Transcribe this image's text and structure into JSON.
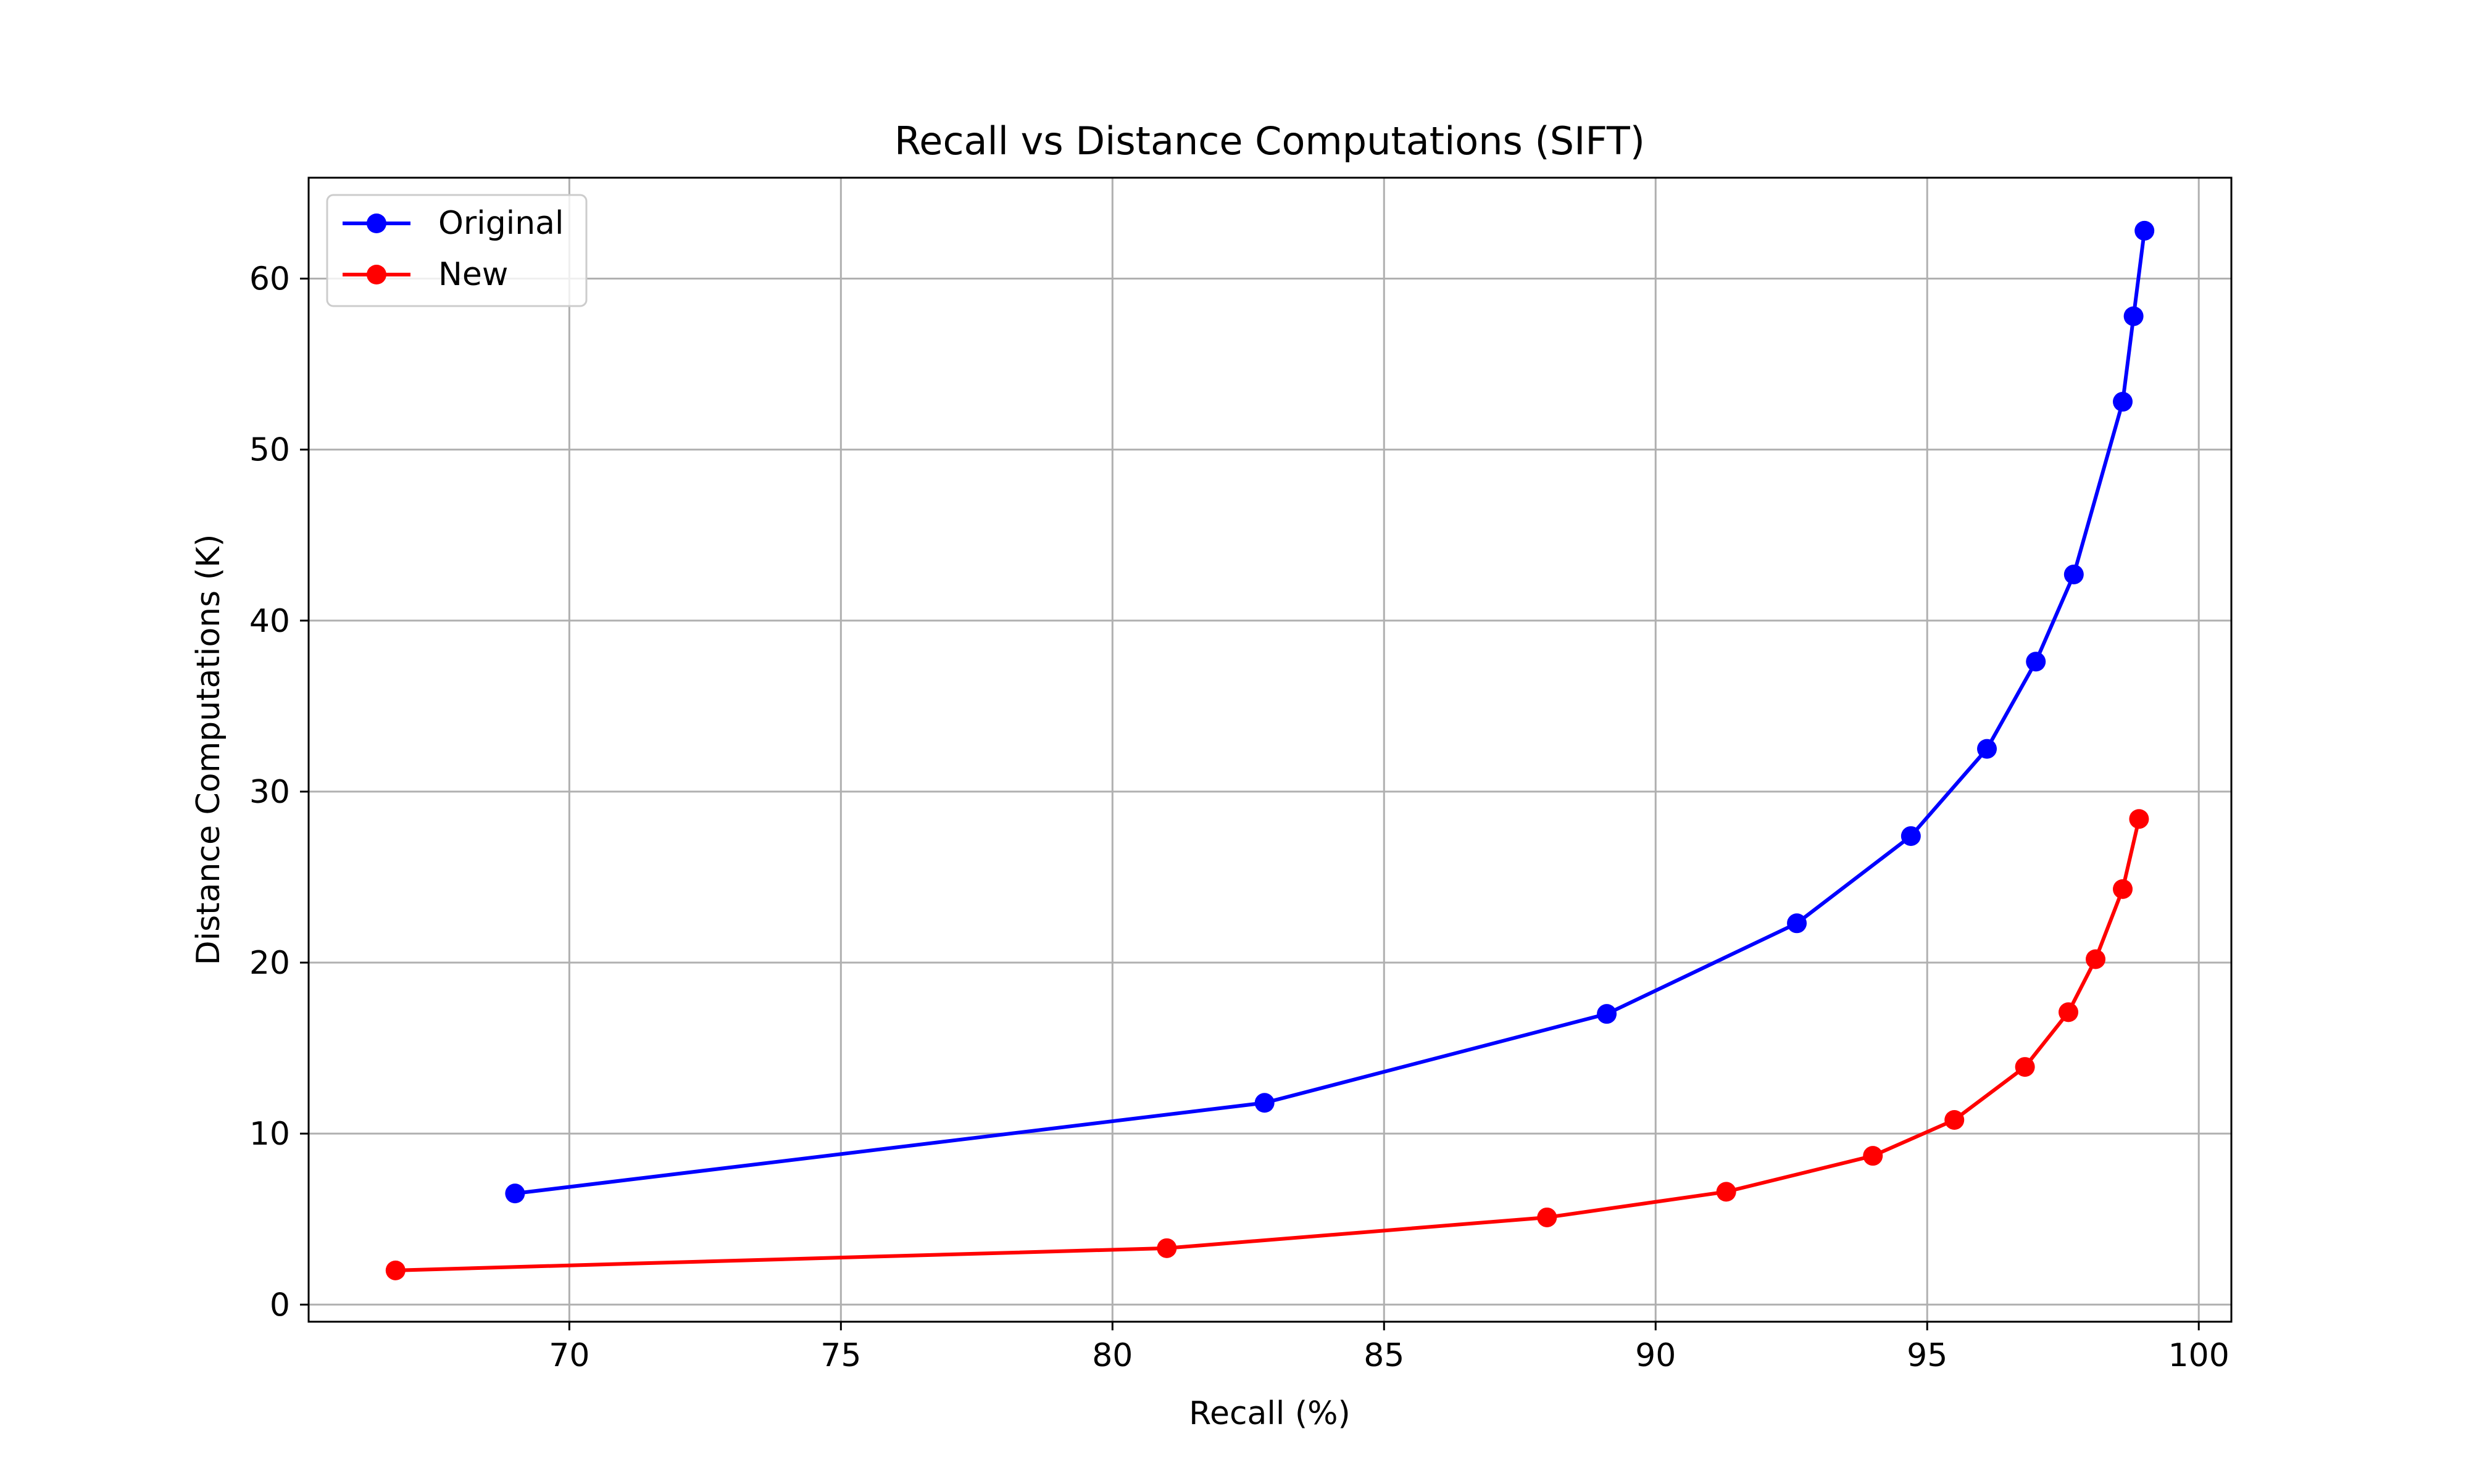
{
  "chart_data": {
    "type": "line",
    "title": "Recall vs Distance Computations (SIFT)",
    "xlabel": "Recall (%)",
    "ylabel": "Distance Computations (K)",
    "xlim": [
      65.2,
      100.6
    ],
    "ylim": [
      -1.0,
      65.9
    ],
    "xticks": [
      70,
      75,
      80,
      85,
      90,
      95,
      100
    ],
    "yticks": [
      0,
      10,
      20,
      30,
      40,
      50,
      60
    ],
    "grid": true,
    "legend_position": "top-left",
    "series": [
      {
        "name": "Original",
        "color": "#0000ff",
        "marker": "circle",
        "points": [
          [
            69.0,
            6.5
          ],
          [
            82.8,
            11.8
          ],
          [
            89.1,
            17.0
          ],
          [
            92.6,
            22.3
          ],
          [
            94.7,
            27.4
          ],
          [
            96.1,
            32.5
          ],
          [
            97.0,
            37.6
          ],
          [
            97.7,
            42.7
          ],
          [
            98.6,
            52.8
          ],
          [
            98.8,
            57.8
          ],
          [
            99.0,
            62.8
          ]
        ]
      },
      {
        "name": "New",
        "color": "#ff0000",
        "marker": "circle",
        "points": [
          [
            66.8,
            2.0
          ],
          [
            81.0,
            3.3
          ],
          [
            88.0,
            5.1
          ],
          [
            91.3,
            6.6
          ],
          [
            94.0,
            8.7
          ],
          [
            95.5,
            10.8
          ],
          [
            96.8,
            13.9
          ],
          [
            97.6,
            17.1
          ],
          [
            98.1,
            20.2
          ],
          [
            98.6,
            24.3
          ],
          [
            98.9,
            28.4
          ]
        ]
      }
    ]
  }
}
